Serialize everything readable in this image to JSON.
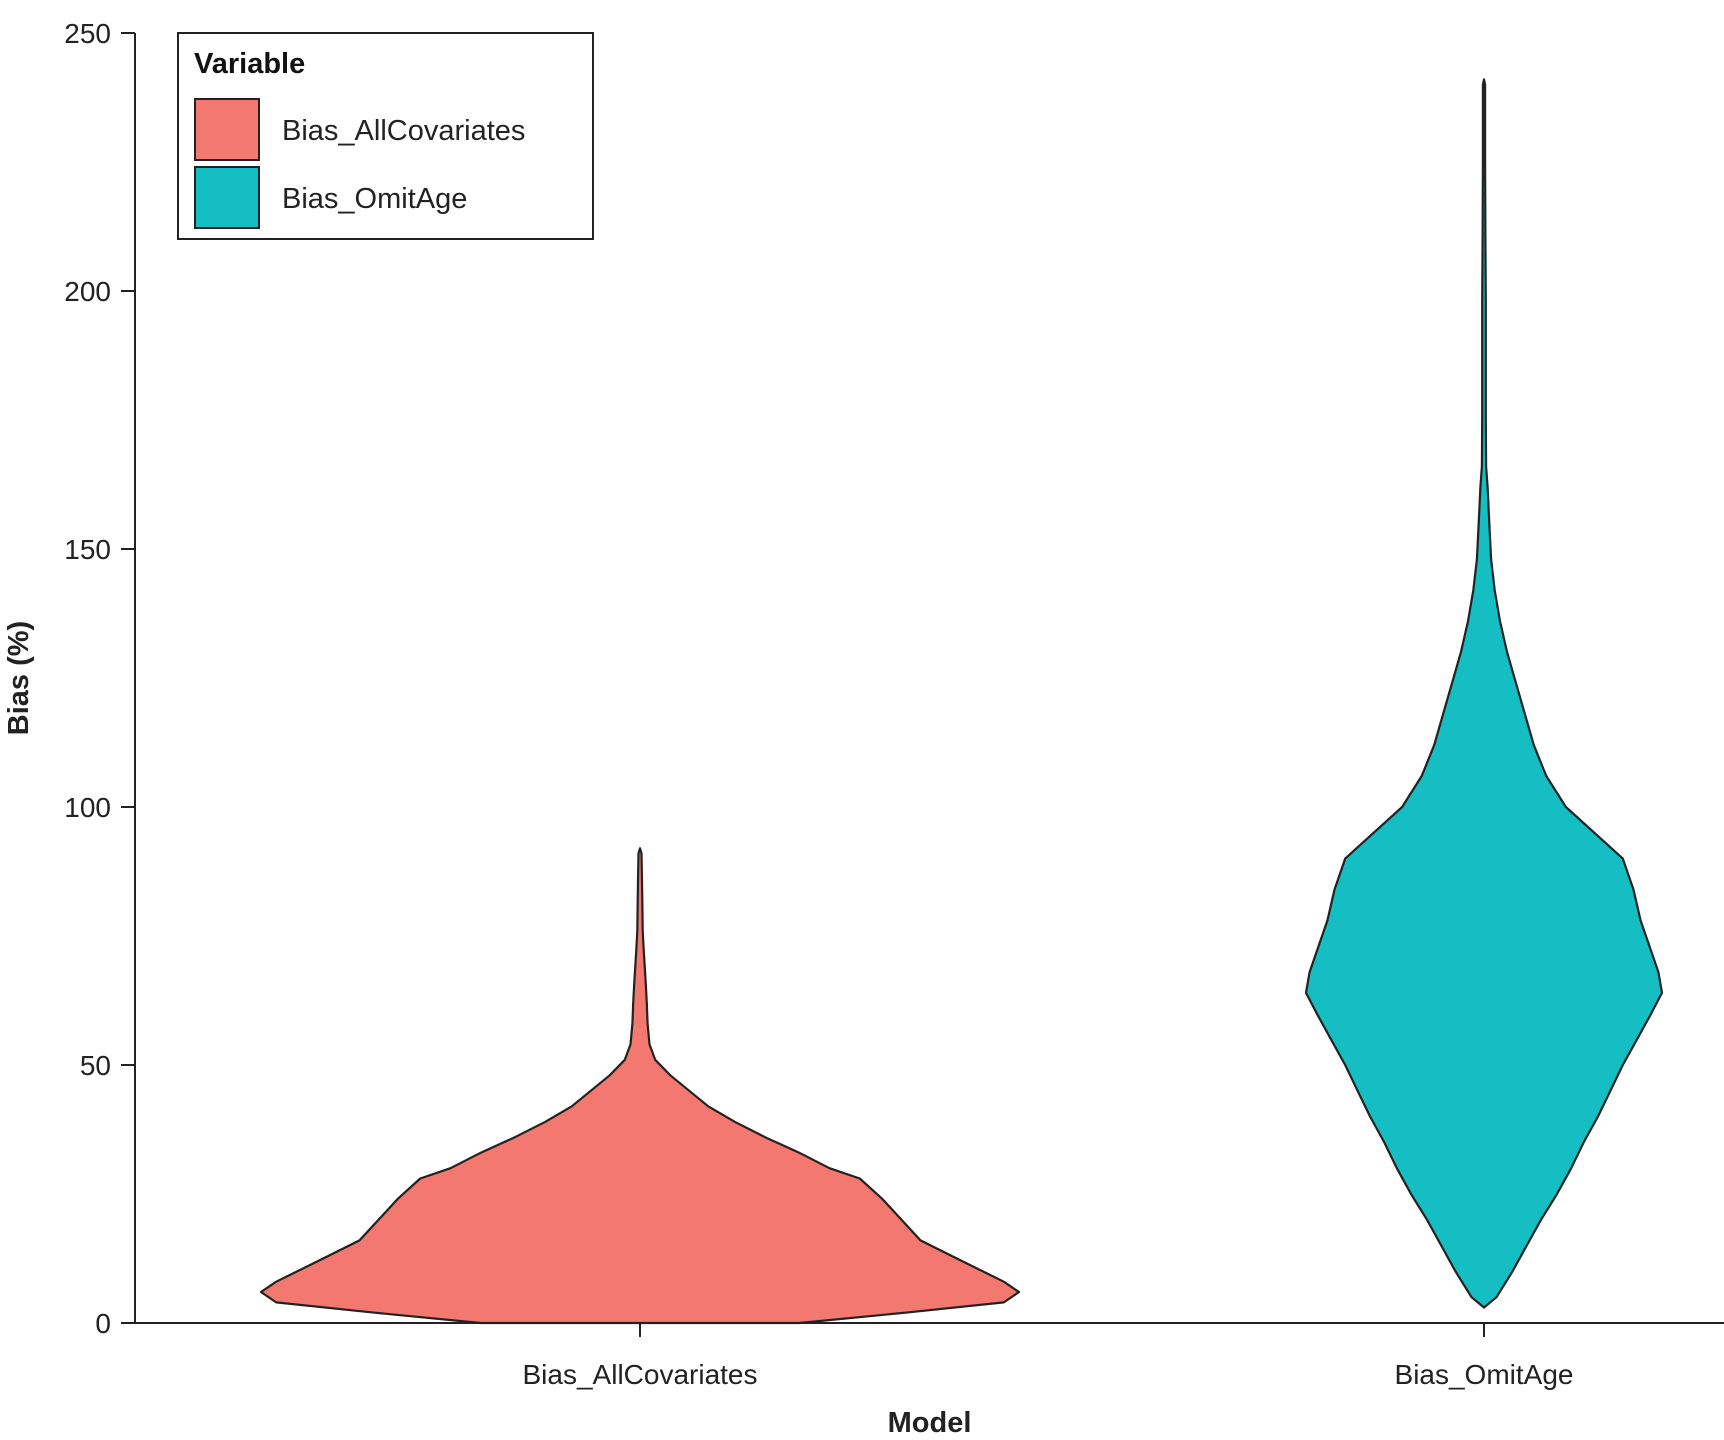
{
  "chart_data": {
    "type": "violin",
    "xlabel": "Model",
    "ylabel": "Bias (%)",
    "ylim": [
      0,
      250
    ],
    "yticks": [
      0,
      50,
      100,
      150,
      200,
      250
    ],
    "categories": [
      "Bias_AllCovariates",
      "Bias_OmitAge"
    ],
    "legend": {
      "title": "Variable",
      "placement": "top-left",
      "entries": [
        "Bias_AllCovariates",
        "Bias_OmitAge"
      ]
    },
    "series": [
      {
        "name": "Bias_AllCovariates",
        "color": "#F27870",
        "density_profile": [
          {
            "y": 0,
            "width": 0.42
          },
          {
            "y": 2,
            "width": 0.7
          },
          {
            "y": 4,
            "width": 0.96
          },
          {
            "y": 6,
            "width": 1.0
          },
          {
            "y": 8,
            "width": 0.96
          },
          {
            "y": 12,
            "width": 0.85
          },
          {
            "y": 16,
            "width": 0.74
          },
          {
            "y": 20,
            "width": 0.69
          },
          {
            "y": 24,
            "width": 0.64
          },
          {
            "y": 28,
            "width": 0.58
          },
          {
            "y": 30,
            "width": 0.5
          },
          {
            "y": 33,
            "width": 0.42
          },
          {
            "y": 36,
            "width": 0.33
          },
          {
            "y": 39,
            "width": 0.25
          },
          {
            "y": 42,
            "width": 0.18
          },
          {
            "y": 45,
            "width": 0.13
          },
          {
            "y": 48,
            "width": 0.08
          },
          {
            "y": 51,
            "width": 0.04
          },
          {
            "y": 54,
            "width": 0.025
          },
          {
            "y": 58,
            "width": 0.02
          },
          {
            "y": 62,
            "width": 0.018
          },
          {
            "y": 66,
            "width": 0.015
          },
          {
            "y": 72,
            "width": 0.01
          },
          {
            "y": 76,
            "width": 0.007
          },
          {
            "y": 82,
            "width": 0.006
          },
          {
            "y": 87,
            "width": 0.005
          },
          {
            "y": 91,
            "width": 0.004
          },
          {
            "y": 92,
            "width": 0
          }
        ]
      },
      {
        "name": "Bias_OmitAge",
        "color": "#14BEC3",
        "density_profile": [
          {
            "y": 3,
            "width": 0.0
          },
          {
            "y": 5,
            "width": 0.07
          },
          {
            "y": 10,
            "width": 0.16
          },
          {
            "y": 15,
            "width": 0.24
          },
          {
            "y": 20,
            "width": 0.32
          },
          {
            "y": 25,
            "width": 0.41
          },
          {
            "y": 30,
            "width": 0.49
          },
          {
            "y": 35,
            "width": 0.56
          },
          {
            "y": 40,
            "width": 0.64
          },
          {
            "y": 45,
            "width": 0.71
          },
          {
            "y": 50,
            "width": 0.78
          },
          {
            "y": 55,
            "width": 0.86
          },
          {
            "y": 60,
            "width": 0.94
          },
          {
            "y": 64,
            "width": 1.0
          },
          {
            "y": 68,
            "width": 0.98
          },
          {
            "y": 72,
            "width": 0.94
          },
          {
            "y": 78,
            "width": 0.88
          },
          {
            "y": 84,
            "width": 0.84
          },
          {
            "y": 90,
            "width": 0.78
          },
          {
            "y": 95,
            "width": 0.62
          },
          {
            "y": 100,
            "width": 0.46
          },
          {
            "y": 106,
            "width": 0.35
          },
          {
            "y": 112,
            "width": 0.28
          },
          {
            "y": 118,
            "width": 0.23
          },
          {
            "y": 124,
            "width": 0.18
          },
          {
            "y": 130,
            "width": 0.13
          },
          {
            "y": 136,
            "width": 0.09
          },
          {
            "y": 142,
            "width": 0.06
          },
          {
            "y": 148,
            "width": 0.04
          },
          {
            "y": 155,
            "width": 0.03
          },
          {
            "y": 162,
            "width": 0.02
          },
          {
            "y": 166,
            "width": 0.012
          },
          {
            "y": 175,
            "width": 0.01
          },
          {
            "y": 180,
            "width": 0.01
          },
          {
            "y": 190,
            "width": 0.01
          },
          {
            "y": 198,
            "width": 0.01
          },
          {
            "y": 210,
            "width": 0.008
          },
          {
            "y": 225,
            "width": 0.006
          },
          {
            "y": 240,
            "width": 0.006
          },
          {
            "y": 241,
            "width": 0
          }
        ]
      }
    ]
  }
}
